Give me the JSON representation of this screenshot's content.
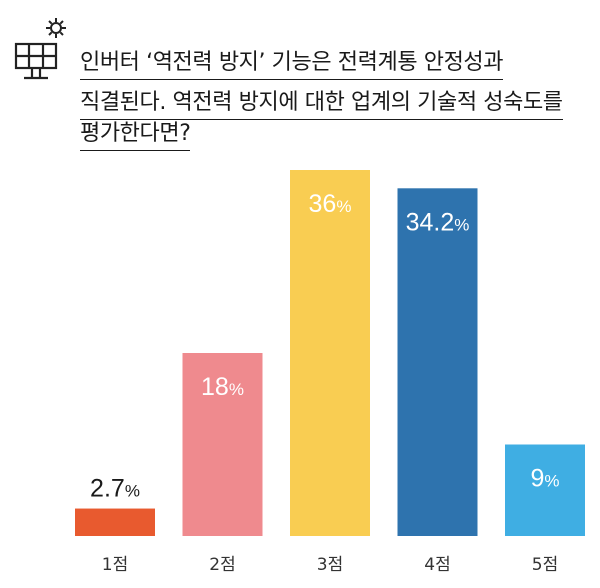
{
  "question": {
    "lines": [
      "인버터 ‘역전력 방지’ 기능은 전력계통 안정성과",
      "직결된다. 역전력 방지에 대한 업계의 기술적 성숙도를",
      "평가한다면?"
    ]
  },
  "header_icon": "solar-panel-gear-icon",
  "chart_data": {
    "type": "bar",
    "categories": [
      "1점",
      "2점",
      "3점",
      "4점",
      "5점"
    ],
    "values": [
      2.7,
      18,
      36,
      34.2,
      9
    ],
    "value_labels": [
      "2.7%",
      "18%",
      "36%",
      "34.2%",
      "9%"
    ],
    "unit": "%",
    "colors": [
      "#E85A2F",
      "#EF8A8E",
      "#F9CD52",
      "#2E73AE",
      "#3FAEE3"
    ],
    "label_colors": [
      "#1a1a1a",
      "#ffffff",
      "#ffffff",
      "#ffffff",
      "#ffffff"
    ],
    "ylim": [
      0,
      36
    ],
    "grid": false,
    "title": "",
    "xlabel": "",
    "ylabel": ""
  }
}
